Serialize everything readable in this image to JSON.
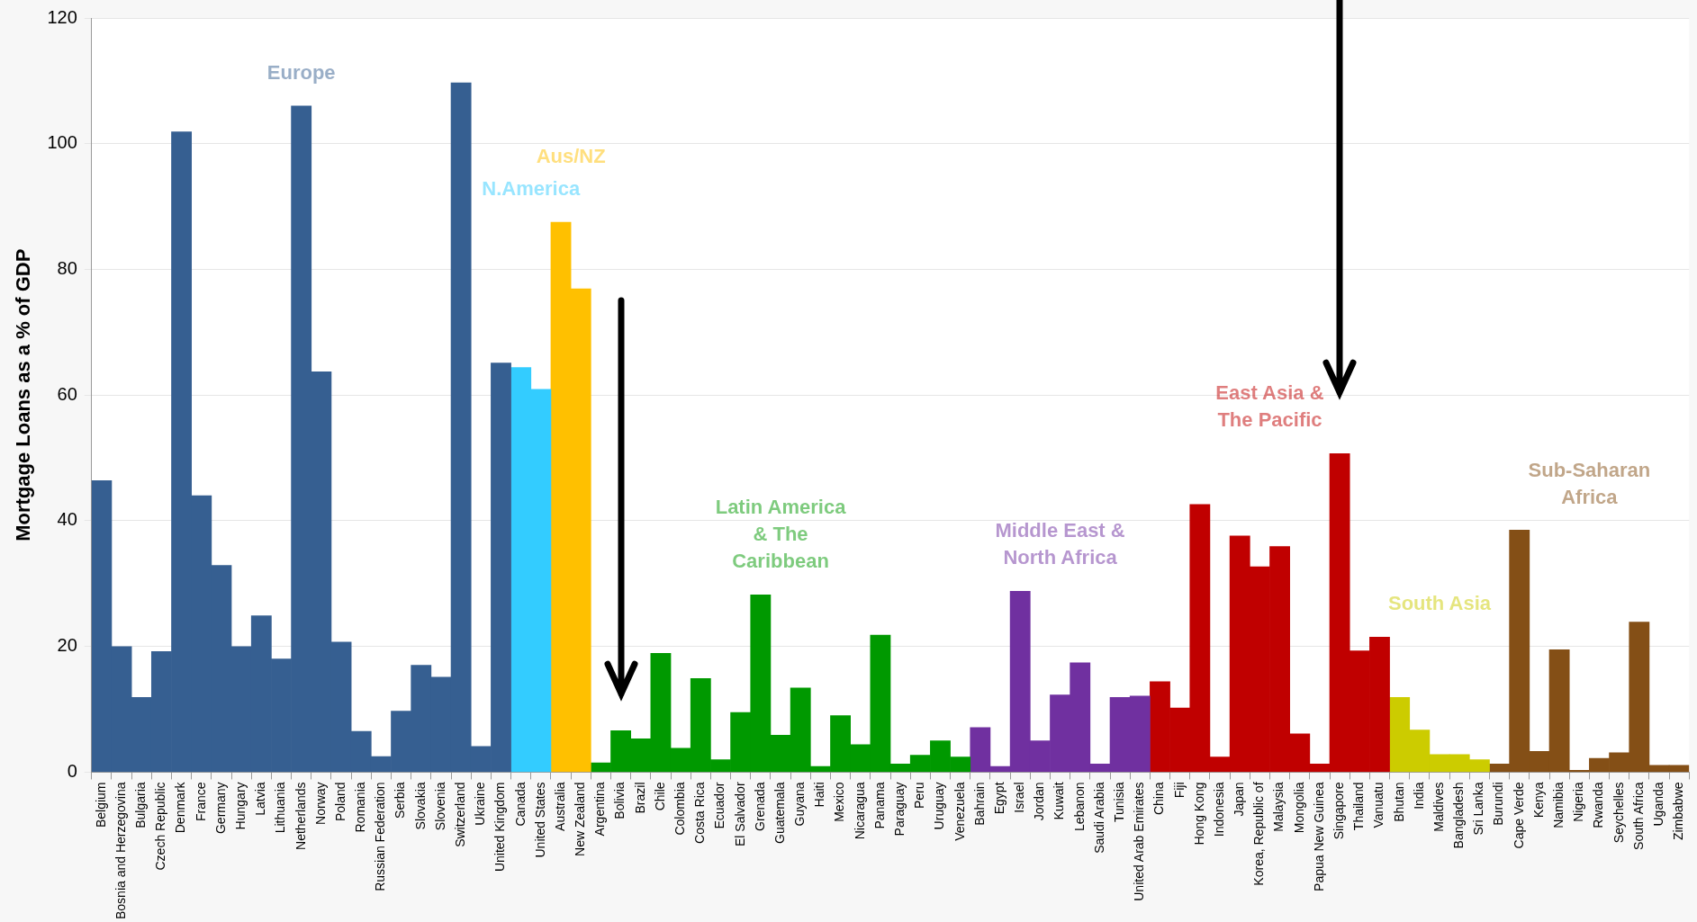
{
  "chart_data": {
    "type": "bar",
    "stacked": true,
    "ylabel": "Mortgage Loans as a % of GDP",
    "ylim": [
      0,
      120
    ],
    "yticks": [
      0,
      20,
      40,
      60,
      80,
      100,
      120
    ],
    "grid": "y",
    "legend": false,
    "categories": [
      "Belgium",
      "Bosnia and Herzegovina",
      "Bulgaria",
      "Czech Republic",
      "Denmark",
      "France",
      "Germany",
      "Hungary",
      "Latvia",
      "Lithuania",
      "Netherlands",
      "Norway",
      "Poland",
      "Romania",
      "Russian Federation",
      "Serbia",
      "Slovakia",
      "Slovenia",
      "Switzerland",
      "Ukraine",
      "United Kingdom",
      "Canada",
      "United States",
      "Australia",
      "New Zealand",
      "Argentina",
      "Bolivia",
      "Brazil",
      "Chile",
      "Colombia",
      "Costa Rica",
      "Ecuador",
      "El Salvador",
      "Grenada",
      "Guatemala",
      "Guyana",
      "Haiti",
      "Mexico",
      "Nicaragua",
      "Panama",
      "Paraguay",
      "Peru",
      "Uruguay",
      "Venezuela",
      "Bahrain",
      "Egypt",
      "Israel",
      "Jordan",
      "Kuwait",
      "Lebanon",
      "Saudi Arabia",
      "Tunisia",
      "United Arab Emirates",
      "China",
      "Fiji",
      "Hong Kong",
      "Indonesia",
      "Japan",
      "Korea, Republic of",
      "Malaysia",
      "Mongolia",
      "Papua New Guinea",
      "Singapore",
      "Thailand",
      "Vanuatu",
      "Bhutan",
      "India",
      "Maldives",
      "Bangladesh",
      "Sri Lanka",
      "Burundi",
      "Cape Verde",
      "Kenya",
      "Namibia",
      "Nigeria",
      "Rwanda",
      "Seychelles",
      "South Africa",
      "Uganda",
      "Zimbabwe"
    ],
    "series": [
      {
        "name": "Europe",
        "color": "#365f91",
        "values": [
          46.4,
          20.0,
          11.9,
          19.2,
          101.9,
          44.0,
          32.9,
          20.0,
          24.9,
          18.0,
          106.0,
          63.7,
          20.7,
          6.5,
          2.5,
          9.7,
          17.0,
          15.1,
          109.7,
          4.1,
          65.1,
          null,
          null,
          null,
          null,
          null,
          null,
          null,
          null,
          null,
          null,
          null,
          null,
          null,
          null,
          null,
          null,
          null,
          null,
          null,
          null,
          null,
          null,
          null,
          null,
          null,
          null,
          null,
          null,
          null,
          null,
          null,
          null,
          null,
          null,
          null,
          null,
          null,
          null,
          null,
          null,
          null,
          null,
          null,
          null,
          null,
          null,
          null,
          null,
          null,
          null,
          null,
          null,
          null,
          null,
          null,
          null,
          null,
          null,
          null
        ]
      },
      {
        "name": "N.America",
        "color": "#33ccff",
        "values": [
          null,
          null,
          null,
          null,
          null,
          null,
          null,
          null,
          null,
          null,
          null,
          null,
          null,
          null,
          null,
          null,
          null,
          null,
          null,
          null,
          null,
          64.4,
          60.9,
          null,
          null,
          null,
          null,
          null,
          null,
          null,
          null,
          null,
          null,
          null,
          null,
          null,
          null,
          null,
          null,
          null,
          null,
          null,
          null,
          null,
          null,
          null,
          null,
          null,
          null,
          null,
          null,
          null,
          null,
          null,
          null,
          null,
          null,
          null,
          null,
          null,
          null,
          null,
          null,
          null,
          null,
          null,
          null,
          null,
          null,
          null,
          null,
          null,
          null,
          null,
          null,
          null,
          null,
          null,
          null,
          null
        ]
      },
      {
        "name": "Aus/NZ",
        "color": "#ffc000",
        "values": [
          null,
          null,
          null,
          null,
          null,
          null,
          null,
          null,
          null,
          null,
          null,
          null,
          null,
          null,
          null,
          null,
          null,
          null,
          null,
          null,
          null,
          null,
          null,
          87.5,
          76.9,
          null,
          null,
          null,
          null,
          null,
          null,
          null,
          null,
          null,
          null,
          null,
          null,
          null,
          null,
          null,
          null,
          null,
          null,
          null,
          null,
          null,
          null,
          null,
          null,
          null,
          null,
          null,
          null,
          null,
          null,
          null,
          null,
          null,
          null,
          null,
          null,
          null,
          null,
          null,
          null,
          null,
          null,
          null,
          null,
          null,
          null,
          null,
          null,
          null,
          null,
          null,
          null,
          null,
          null,
          null
        ]
      },
      {
        "name": "Latin America & The Caribbean",
        "color": "#009900",
        "values": [
          null,
          null,
          null,
          null,
          null,
          null,
          null,
          null,
          null,
          null,
          null,
          null,
          null,
          null,
          null,
          null,
          null,
          null,
          null,
          null,
          null,
          null,
          null,
          null,
          null,
          1.5,
          6.6,
          5.3,
          18.9,
          3.8,
          14.9,
          2.0,
          9.5,
          28.2,
          5.9,
          13.4,
          0.9,
          9.0,
          4.4,
          21.8,
          1.3,
          2.7,
          5.0,
          2.4,
          null,
          null,
          null,
          null,
          null,
          null,
          null,
          null,
          null,
          null,
          null,
          null,
          null,
          null,
          null,
          null,
          null,
          null,
          null,
          null,
          null,
          null,
          null,
          null,
          null,
          null,
          null,
          null,
          null,
          null,
          null,
          null,
          null,
          null,
          null,
          null
        ]
      },
      {
        "name": "Middle East & North Africa",
        "color": "#7030a0",
        "values": [
          null,
          null,
          null,
          null,
          null,
          null,
          null,
          null,
          null,
          null,
          null,
          null,
          null,
          null,
          null,
          null,
          null,
          null,
          null,
          null,
          null,
          null,
          null,
          null,
          null,
          null,
          null,
          null,
          null,
          null,
          null,
          null,
          null,
          null,
          null,
          null,
          null,
          null,
          null,
          null,
          null,
          null,
          null,
          null,
          7.1,
          0.9,
          28.8,
          5.0,
          12.3,
          17.4,
          1.3,
          11.9,
          12.1,
          null,
          null,
          null,
          null,
          null,
          null,
          null,
          null,
          null,
          null,
          null,
          null,
          null,
          null,
          null,
          null,
          null,
          null,
          null,
          null,
          null,
          null,
          null,
          null,
          null,
          null,
          null
        ]
      },
      {
        "name": "East Asia & The Pacific",
        "color": "#c00000",
        "values": [
          null,
          null,
          null,
          null,
          null,
          null,
          null,
          null,
          null,
          null,
          null,
          null,
          null,
          null,
          null,
          null,
          null,
          null,
          null,
          null,
          null,
          null,
          null,
          null,
          null,
          null,
          null,
          null,
          null,
          null,
          null,
          null,
          null,
          null,
          null,
          null,
          null,
          null,
          null,
          null,
          null,
          null,
          null,
          null,
          null,
          null,
          null,
          null,
          null,
          null,
          null,
          null,
          null,
          14.4,
          10.2,
          42.6,
          2.4,
          37.6,
          32.7,
          35.9,
          6.1,
          1.3,
          50.7,
          19.3,
          21.5,
          null,
          null,
          null,
          null,
          null,
          null,
          null,
          null,
          null,
          null,
          null,
          null,
          null,
          null,
          null
        ]
      },
      {
        "name": "South Asia",
        "color": "#cccc00",
        "values": [
          null,
          null,
          null,
          null,
          null,
          null,
          null,
          null,
          null,
          null,
          null,
          null,
          null,
          null,
          null,
          null,
          null,
          null,
          null,
          null,
          null,
          null,
          null,
          null,
          null,
          null,
          null,
          null,
          null,
          null,
          null,
          null,
          null,
          null,
          null,
          null,
          null,
          null,
          null,
          null,
          null,
          null,
          null,
          null,
          null,
          null,
          null,
          null,
          null,
          null,
          null,
          null,
          null,
          null,
          null,
          null,
          null,
          null,
          null,
          null,
          null,
          null,
          null,
          null,
          null,
          11.9,
          6.7,
          2.8,
          2.8,
          2.0,
          null,
          null,
          null,
          null,
          null,
          null,
          null,
          null,
          null,
          null
        ]
      },
      {
        "name": "Sub-Saharan Africa",
        "color": "#844f16",
        "values": [
          null,
          null,
          null,
          null,
          null,
          null,
          null,
          null,
          null,
          null,
          null,
          null,
          null,
          null,
          null,
          null,
          null,
          null,
          null,
          null,
          null,
          null,
          null,
          null,
          null,
          null,
          null,
          null,
          null,
          null,
          null,
          null,
          null,
          null,
          null,
          null,
          null,
          null,
          null,
          null,
          null,
          null,
          null,
          null,
          null,
          null,
          null,
          null,
          null,
          null,
          null,
          null,
          null,
          null,
          null,
          null,
          null,
          null,
          null,
          null,
          null,
          null,
          null,
          null,
          null,
          null,
          null,
          null,
          null,
          null,
          1.3,
          38.5,
          3.3,
          19.5,
          0.3,
          2.2,
          3.1,
          23.9,
          1.1,
          1.1
        ]
      }
    ]
  }
}
